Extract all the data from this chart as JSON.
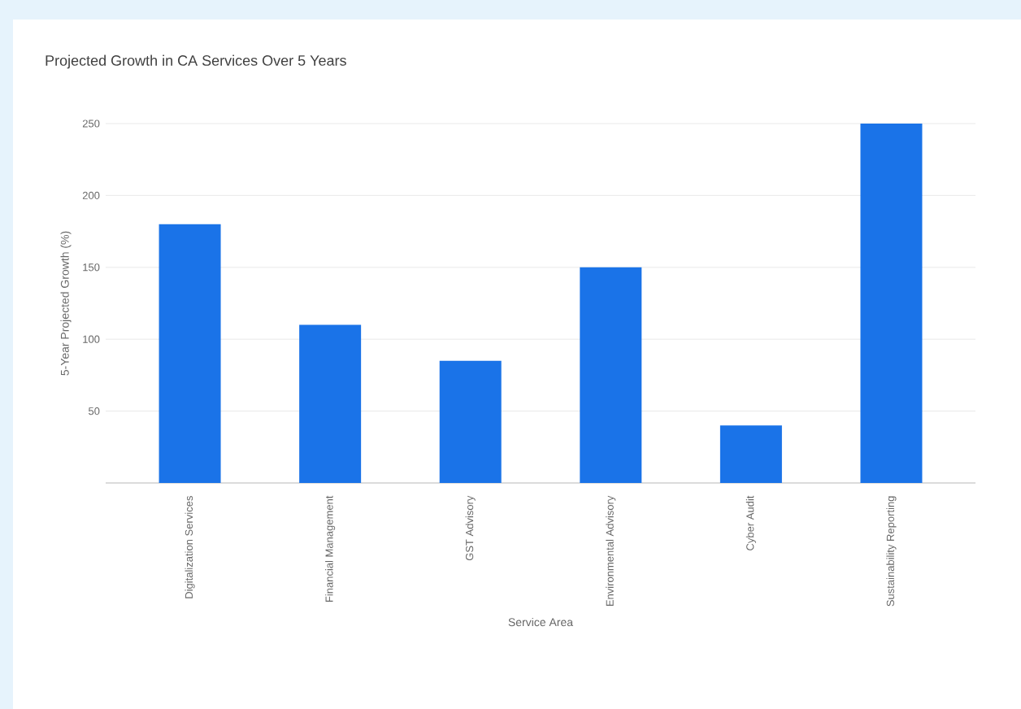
{
  "chart_data": {
    "type": "bar",
    "title": "Projected Growth in CA Services Over 5 Years",
    "xlabel": "Service Area",
    "ylabel": "5-Year Projected Growth (%)",
    "categories": [
      "Digitalization Services",
      "Financial Management",
      "GST Advisory",
      "Environmental Advisory",
      "Cyber Audit",
      "Sustainability Reporting"
    ],
    "values": [
      180,
      110,
      85,
      150,
      40,
      250
    ],
    "color": "#1a73e8",
    "ylim": [
      0,
      250
    ],
    "yticks": [
      50,
      100,
      150,
      200,
      250
    ],
    "grid": "y"
  }
}
